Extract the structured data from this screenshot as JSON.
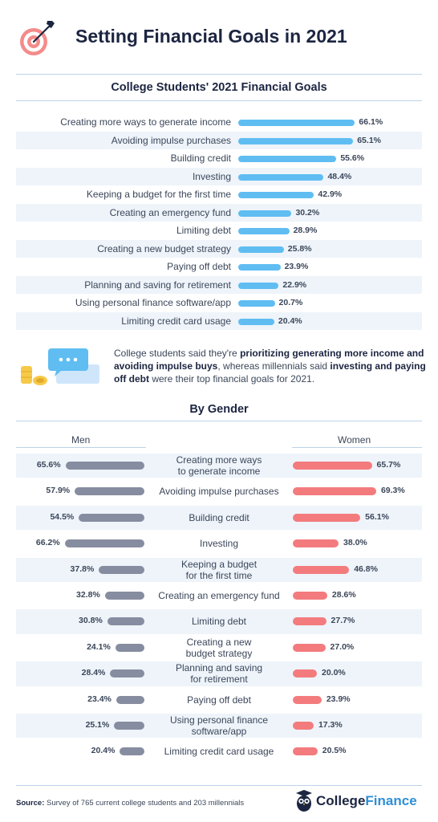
{
  "title": "Setting Financial Goals in 2021",
  "section1_title": "College Students' 2021 Financial Goals",
  "section2_title": "By Gender",
  "note": {
    "pre": "College students said they're ",
    "bold1": "prioritizing generating more income and avoiding impulse buys",
    "mid": ", whereas millennials said ",
    "bold2": "investing and paying off debt",
    "post": " were their top financial goals for 2021."
  },
  "gender_headers": {
    "men": "Men",
    "women": "Women"
  },
  "footer": {
    "source_label": "Source:",
    "source_text": " Survey of 765 current college students and 203 millennials",
    "brand_part1": "College",
    "brand_part2": "Finance"
  },
  "colors": {
    "goal_bar": "#5fbdf2",
    "men_bar": "#878da0",
    "women_bar": "#f37b7e",
    "row_band": "#eef4fa",
    "title": "#1c2541"
  },
  "icons": [
    "target-arrow-icon",
    "chat-bubbles-icon",
    "coins-icon",
    "owl-icon"
  ],
  "chart_data": [
    {
      "type": "bar",
      "orientation": "horizontal",
      "title": "College Students' 2021 Financial Goals",
      "unit": "%",
      "categories": [
        "Creating more ways to generate income",
        "Avoiding impulse purchases",
        "Building credit",
        "Investing",
        "Keeping a budget for the first time",
        "Creating an emergency fund",
        "Limiting debt",
        "Creating a new budget strategy",
        "Paying off debt",
        "Planning and saving for retirement",
        "Using personal finance software/app",
        "Limiting credit card usage"
      ],
      "values": [
        66.1,
        65.1,
        55.6,
        48.4,
        42.9,
        30.2,
        28.9,
        25.8,
        23.9,
        22.9,
        20.7,
        20.4
      ],
      "labels": [
        "66.1%",
        "65.1%",
        "55.6%",
        "48.4%",
        "42.9%",
        "30.2%",
        "28.9%",
        "25.8%",
        "23.9%",
        "22.9%",
        "20.7%",
        "20.4%"
      ]
    },
    {
      "type": "bar",
      "orientation": "diverging",
      "title": "By Gender",
      "unit": "%",
      "categories": [
        "Creating more ways to generate income",
        "Avoiding impulse purchases",
        "Building credit",
        "Investing",
        "Keeping a budget for the first time",
        "Creating an emergency fund",
        "Limiting debt",
        "Creating a new budget strategy",
        "Planning and saving for retirement",
        "Paying off debt",
        "Using personal finance software/app",
        "Limiting credit card usage"
      ],
      "display_labels": [
        [
          "Creating more ways",
          "to generate income"
        ],
        [
          "Avoiding impulse purchases"
        ],
        [
          "Building credit"
        ],
        [
          "Investing"
        ],
        [
          "Keeping a budget",
          "for the first time"
        ],
        [
          "Creating an emergency fund"
        ],
        [
          "Limiting debt"
        ],
        [
          "Creating a new",
          "budget strategy"
        ],
        [
          "Planning and saving",
          "for retirement"
        ],
        [
          "Paying off debt"
        ],
        [
          "Using personal finance",
          "software/app"
        ],
        [
          "Limiting credit card usage"
        ]
      ],
      "series": [
        {
          "name": "Men",
          "values": [
            65.6,
            57.9,
            54.5,
            66.2,
            37.8,
            32.8,
            30.8,
            24.1,
            28.4,
            23.4,
            25.1,
            20.4
          ],
          "labels": [
            "65.6%",
            "57.9%",
            "54.5%",
            "66.2%",
            "37.8%",
            "32.8%",
            "30.8%",
            "24.1%",
            "28.4%",
            "23.4%",
            "25.1%",
            "20.4%"
          ]
        },
        {
          "name": "Women",
          "values": [
            65.7,
            69.3,
            56.1,
            38.0,
            46.8,
            28.6,
            27.7,
            27.0,
            20.0,
            23.9,
            17.3,
            20.5
          ],
          "labels": [
            "65.7%",
            "69.3%",
            "56.1%",
            "38.0%",
            "46.8%",
            "28.6%",
            "27.7%",
            "27.0%",
            "20.0%",
            "23.9%",
            "17.3%",
            "20.5%"
          ]
        }
      ]
    }
  ]
}
